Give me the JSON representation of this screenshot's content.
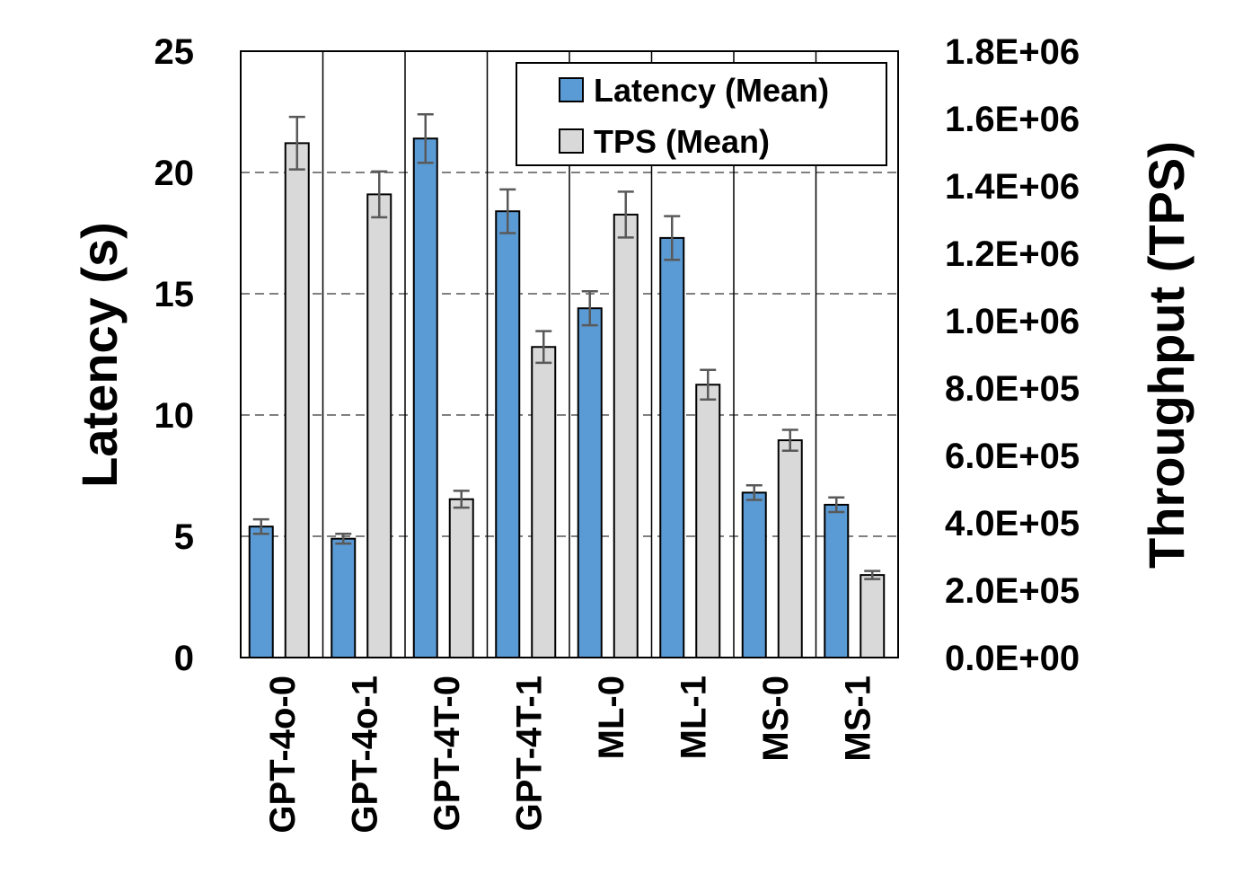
{
  "chart_data": {
    "type": "bar",
    "categories": [
      "GPT-4o-0",
      "GPT-4o-1",
      "GPT-4T-0",
      "GPT-4T-1",
      "ML-0",
      "ML-1",
      "MS-0",
      "MS-1"
    ],
    "series": [
      {
        "name": "Latency (Mean)",
        "axis": "left",
        "color": "#5b9bd5",
        "values": [
          5.4,
          4.9,
          21.4,
          18.4,
          14.4,
          17.3,
          6.8,
          6.3
        ],
        "error": [
          0.3,
          0.2,
          1.0,
          0.9,
          0.7,
          0.9,
          0.3,
          0.3
        ]
      },
      {
        "name": "TPS (Mean)",
        "axis": "right",
        "color": "#d9d9d9",
        "values": [
          1527000,
          1375000,
          470000,
          922000,
          1315000,
          810000,
          645000,
          245000
        ],
        "error": [
          78000,
          68000,
          25000,
          47000,
          68000,
          44000,
          31000,
          12000
        ]
      }
    ],
    "ylabel": "Latency (s)",
    "ylabel_right": "Throughput (TPS)",
    "ylim": [
      0,
      25
    ],
    "ylim_right": [
      0,
      1800000
    ],
    "yticks": [
      "0",
      "5",
      "10",
      "15",
      "20",
      "25"
    ],
    "yticks_right": [
      "0.0E+00",
      "2.0E+05",
      "4.0E+05",
      "6.0E+05",
      "8.0E+05",
      "1.0E+06",
      "1.2E+06",
      "1.4E+06",
      "1.6E+06",
      "1.8E+06"
    ],
    "grid": "horizontal dashed",
    "legend": "top-right",
    "error_bar_color": "#595959"
  }
}
